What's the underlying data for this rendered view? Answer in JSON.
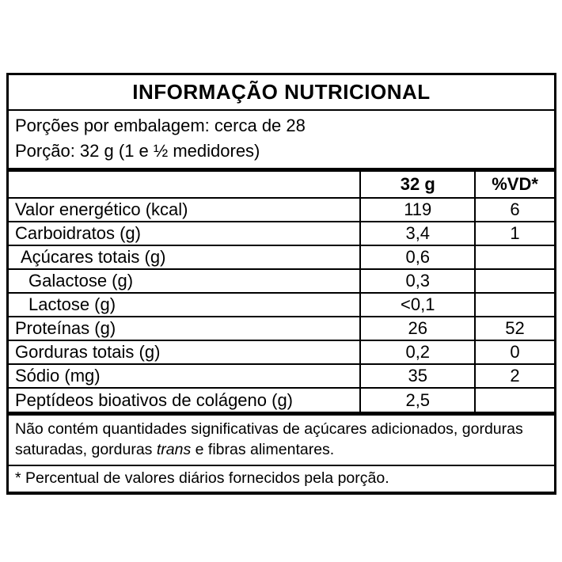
{
  "title": "INFORMAÇÃO NUTRICIONAL",
  "serving_info": {
    "servings_per_package": "Porções por embalagem: cerca de 28",
    "serving_size": "Porção: 32 g (1 e ½ medidores)"
  },
  "table": {
    "columns": {
      "nutrient": "",
      "amount": "32 g",
      "dv": "%VD*"
    },
    "rows": [
      {
        "label": "Valor energético (kcal)",
        "amount": "119",
        "dv": "6",
        "indent": 0
      },
      {
        "label": "Carboidratos (g)",
        "amount": "3,4",
        "dv": "1",
        "indent": 0
      },
      {
        "label": "Açúcares totais (g)",
        "amount": "0,6",
        "dv": "",
        "indent": 1
      },
      {
        "label": "Galactose (g)",
        "amount": "0,3",
        "dv": "",
        "indent": 2
      },
      {
        "label": "Lactose (g)",
        "amount": "<0,1",
        "dv": "",
        "indent": 2
      },
      {
        "label": "Proteínas (g)",
        "amount": "26",
        "dv": "52",
        "indent": 0
      },
      {
        "label": "Gorduras totais (g)",
        "amount": "0,2",
        "dv": "0",
        "indent": 0
      },
      {
        "label": "Sódio (mg)",
        "amount": "35",
        "dv": "2",
        "indent": 0
      },
      {
        "label": "Peptídeos bioativos de colágeno (g)",
        "amount": "2,5",
        "dv": "",
        "indent": 0
      }
    ]
  },
  "notes": {
    "no_significant_prefix": "Não contém quantidades significativas de açúcares adicionados, gorduras saturadas, gorduras ",
    "trans_word": "trans",
    "no_significant_suffix": " e fibras alimentares.",
    "daily_value_note": "* Percentual de valores diários fornecidos pela porção."
  }
}
